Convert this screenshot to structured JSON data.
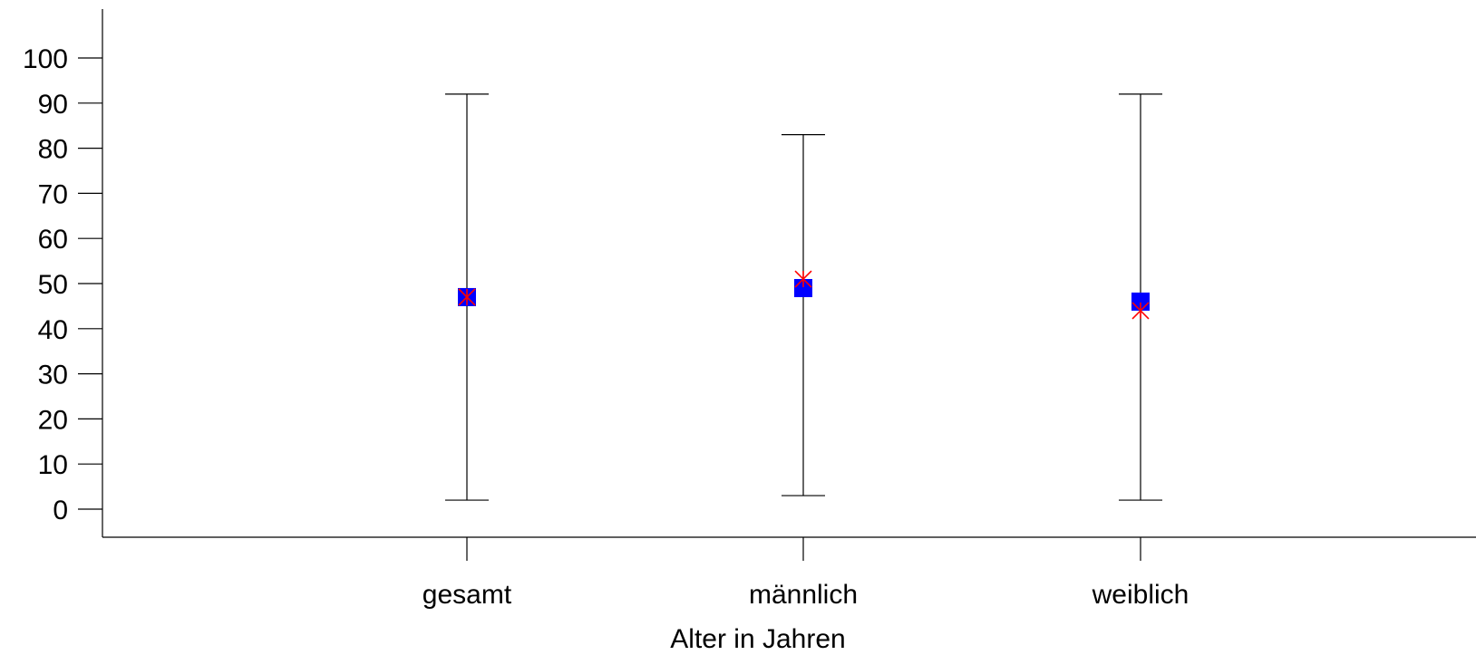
{
  "chart_data": {
    "type": "scatter",
    "xlabel": "Alter in Jahren",
    "ylabel": "",
    "ylim": [
      0,
      100
    ],
    "y_ticks": [
      0,
      10,
      20,
      30,
      40,
      50,
      60,
      70,
      80,
      90,
      100
    ],
    "categories": [
      "gesamt",
      "männlich",
      "weiblich"
    ],
    "series": [
      {
        "kind": "range",
        "min": [
          2,
          3,
          2
        ],
        "max": [
          92,
          83,
          92
        ]
      },
      {
        "kind": "square-marker",
        "values": [
          47,
          49,
          46
        ]
      },
      {
        "kind": "cross-marker",
        "values": [
          47,
          51,
          44
        ]
      }
    ],
    "grid": false,
    "legend": "none",
    "colors": {
      "square": "#0000ff",
      "cross": "#ff0000",
      "axis": "#000000"
    }
  }
}
